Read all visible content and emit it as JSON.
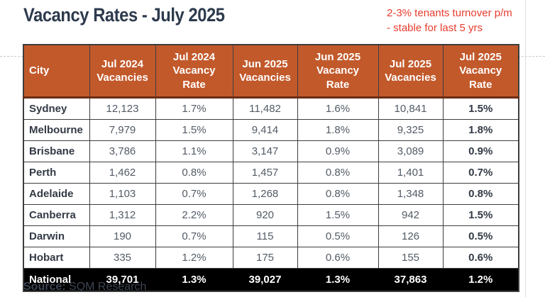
{
  "page": {
    "title": "Vacancy Rates - July 2025",
    "annotation": {
      "line1": "2-3% tenants turnover p/m",
      "line2": "- stable for last 5 yrs"
    },
    "source": {
      "label": "Source:",
      "value": " SQM Research"
    }
  },
  "table": {
    "columns": [
      "City",
      "Jul 2024\nVacancies",
      "Jul 2024\nVacancy\nRate",
      "Jun 2025\nVacancies",
      "Jun 2025\nVacancy\nRate",
      "Jul 2025\nVacancies",
      "Jul 2025\nVacancy\nRate"
    ],
    "rows": [
      {
        "city": "Sydney",
        "cells": [
          "12,123",
          "1.7%",
          "11,482",
          "1.6%",
          "10,841",
          "1.5%"
        ]
      },
      {
        "city": "Melbourne",
        "cells": [
          "7,979",
          "1.5%",
          "9,414",
          "1.8%",
          "9,325",
          "1.8%"
        ]
      },
      {
        "city": "Brisbane",
        "cells": [
          "3,786",
          "1.1%",
          "3,147",
          "0.9%",
          "3,089",
          "0.9%"
        ]
      },
      {
        "city": "Perth",
        "cells": [
          "1,462",
          "0.8%",
          "1,457",
          "0.8%",
          "1,401",
          "0.7%"
        ]
      },
      {
        "city": "Adelaide",
        "cells": [
          "1,103",
          "0.7%",
          "1,268",
          "0.8%",
          "1,348",
          "0.8%"
        ]
      },
      {
        "city": "Canberra",
        "cells": [
          "1,312",
          "2.2%",
          "920",
          "1.5%",
          "942",
          "1.5%"
        ]
      },
      {
        "city": "Darwin",
        "cells": [
          "190",
          "0.7%",
          "115",
          "0.5%",
          "126",
          "0.5%"
        ]
      },
      {
        "city": "Hobart",
        "cells": [
          "335",
          "1.2%",
          "175",
          "0.6%",
          "155",
          "0.6%"
        ]
      }
    ],
    "national": {
      "city": "National",
      "cells": [
        "39,701",
        "1.3%",
        "39,027",
        "1.3%",
        "37,863",
        "1.2%"
      ]
    }
  },
  "colors": {
    "header_bg": "#c2592b",
    "header_border_bottom": "#6d2c15",
    "national_bg": "#000000",
    "title_text": "#2d3a4d",
    "body_text_dark": "#333a45",
    "body_text_gray": "#535b66",
    "annotation_red": "#e73c2e",
    "table_border": "#3d3d3d"
  },
  "chart_data": {
    "type": "table",
    "title": "Vacancy Rates - July 2025",
    "categories": [
      "Sydney",
      "Melbourne",
      "Brisbane",
      "Perth",
      "Adelaide",
      "Canberra",
      "Darwin",
      "Hobart",
      "National"
    ],
    "series": [
      {
        "name": "Jul 2024 Vacancies",
        "values": [
          12123,
          7979,
          3786,
          1462,
          1103,
          1312,
          190,
          335,
          39701
        ]
      },
      {
        "name": "Jul 2024 Vacancy Rate",
        "values": [
          "1.7%",
          "1.5%",
          "1.1%",
          "0.8%",
          "0.7%",
          "2.2%",
          "0.7%",
          "1.2%",
          "1.3%"
        ]
      },
      {
        "name": "Jun 2025 Vacancies",
        "values": [
          11482,
          9414,
          3147,
          1457,
          1268,
          920,
          115,
          175,
          39027
        ]
      },
      {
        "name": "Jun 2025 Vacancy Rate",
        "values": [
          "1.6%",
          "1.8%",
          "0.9%",
          "0.8%",
          "0.8%",
          "1.5%",
          "0.5%",
          "0.6%",
          "1.3%"
        ]
      },
      {
        "name": "Jul 2025 Vacancies",
        "values": [
          10841,
          9325,
          3089,
          1401,
          1348,
          942,
          126,
          155,
          37863
        ]
      },
      {
        "name": "Jul 2025 Vacancy Rate",
        "values": [
          "1.5%",
          "1.8%",
          "0.9%",
          "0.7%",
          "0.8%",
          "1.5%",
          "0.5%",
          "0.6%",
          "1.2%"
        ]
      }
    ]
  }
}
